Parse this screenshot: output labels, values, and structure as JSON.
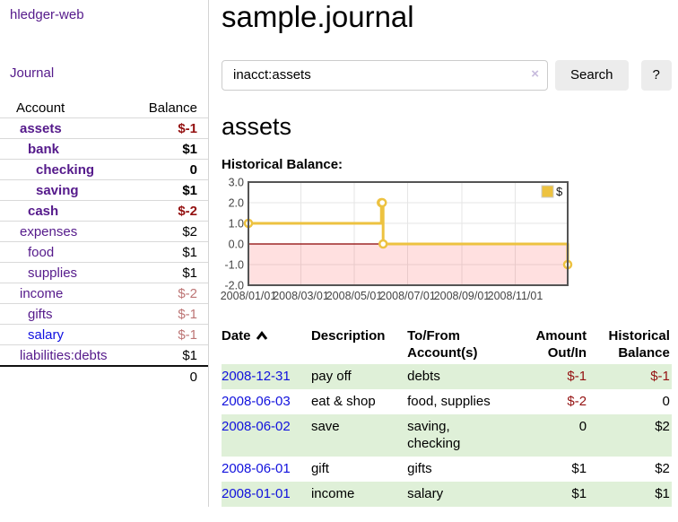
{
  "app": {
    "brand": "hledger-web",
    "nav_journal_label": "Journal"
  },
  "sidebar": {
    "columns": {
      "account": "Account",
      "balance": "Balance"
    },
    "accounts": [
      {
        "name": "assets",
        "depth": 1,
        "bold": true,
        "balance": "$-1",
        "neg": "strong"
      },
      {
        "name": "bank",
        "depth": 2,
        "bold": true,
        "balance": "$1",
        "neg": ""
      },
      {
        "name": "checking",
        "depth": 3,
        "bold": true,
        "balance": "0",
        "neg": ""
      },
      {
        "name": "saving",
        "depth": 3,
        "bold": true,
        "balance": "$1",
        "neg": ""
      },
      {
        "name": "cash",
        "depth": 2,
        "bold": true,
        "balance": "$-2",
        "neg": "strong"
      },
      {
        "name": "expenses",
        "depth": 1,
        "bold": false,
        "balance": "$2",
        "neg": ""
      },
      {
        "name": "food",
        "depth": 2,
        "bold": false,
        "balance": "$1",
        "neg": ""
      },
      {
        "name": "supplies",
        "depth": 2,
        "bold": false,
        "balance": "$1",
        "neg": ""
      },
      {
        "name": "income",
        "depth": 1,
        "bold": false,
        "balance": "$-2",
        "neg": "muted"
      },
      {
        "name": "gifts",
        "depth": 2,
        "bold": false,
        "balance": "$-1",
        "neg": "muted"
      },
      {
        "name": "salary",
        "depth": 2,
        "bold": false,
        "balance": "$-1",
        "neg": "muted",
        "blue": true
      },
      {
        "name": "liabilities:debts",
        "depth": 1,
        "bold": false,
        "balance": "$1",
        "neg": ""
      }
    ],
    "total": "0"
  },
  "header": {
    "title": "sample.journal"
  },
  "search": {
    "value": "inacct:assets",
    "clear_glyph": "×",
    "button_label": "Search",
    "help_label": "?"
  },
  "account_page": {
    "title": "assets",
    "chart_label": "Historical Balance:"
  },
  "chart_data": {
    "type": "line",
    "step": true,
    "title": "Historical Balance",
    "series": [
      {
        "name": "$",
        "color": "#edc240",
        "points": [
          [
            "2008-01-01",
            1
          ],
          [
            "2008-06-01",
            2
          ],
          [
            "2008-06-02",
            2
          ],
          [
            "2008-06-03",
            0
          ],
          [
            "2008-12-31",
            -1
          ]
        ]
      }
    ],
    "xlim": [
      "2008-01-01",
      "2008-12-31"
    ],
    "ylim": [
      -2,
      3
    ],
    "yticks": [
      {
        "value": 3,
        "label": "3.0"
      },
      {
        "value": 2,
        "label": "2.0"
      },
      {
        "value": 1,
        "label": "1.0"
      },
      {
        "value": 0,
        "label": "0.0"
      },
      {
        "value": -1,
        "label": "-1.0"
      },
      {
        "value": -2,
        "label": "-2.0"
      }
    ],
    "xticks": [
      {
        "date": "2008-01-01",
        "label": "2008/01/01"
      },
      {
        "date": "2008-03-01",
        "label": "2008/03/01"
      },
      {
        "date": "2008-05-01",
        "label": "2008/05/01"
      },
      {
        "date": "2008-07-01",
        "label": "2008/07/01"
      },
      {
        "date": "2008-09-01",
        "label": "2008/09/01"
      },
      {
        "date": "2008-11-01",
        "label": "2008/11/01"
      }
    ],
    "legend": {
      "label": "$",
      "position": "top-right",
      "swatch_color": "#edc240"
    },
    "grid": true,
    "grid_color": "#e6e6e6",
    "border_color": "#545454",
    "zero_line_color": "#8b0000",
    "negative_region_color": "rgba(255,0,0,0.12)",
    "tick_label_color": "#444444",
    "marker": "circle-open"
  },
  "register": {
    "columns": {
      "date": "Date",
      "description": "Description",
      "accounts": "To/From Account(s)",
      "amount": "Amount Out/In",
      "balance": "Historical Balance"
    },
    "sort": "ascending",
    "rows": [
      {
        "date": "2008-12-31",
        "description": "pay off",
        "accounts": "debts",
        "amount": "$-1",
        "amount_neg": true,
        "balance": "$-1",
        "balance_neg": true
      },
      {
        "date": "2008-06-03",
        "description": "eat & shop",
        "accounts": "food, supplies",
        "amount": "$-2",
        "amount_neg": true,
        "balance": "0",
        "balance_neg": false
      },
      {
        "date": "2008-06-02",
        "description": "save",
        "accounts": "saving, checking",
        "amount": "0",
        "amount_neg": false,
        "balance": "$2",
        "balance_neg": false
      },
      {
        "date": "2008-06-01",
        "description": "gift",
        "accounts": "gifts",
        "amount": "$1",
        "amount_neg": false,
        "balance": "$2",
        "balance_neg": false
      },
      {
        "date": "2008-01-01",
        "description": "income",
        "accounts": "salary",
        "amount": "$1",
        "amount_neg": false,
        "balance": "$1",
        "balance_neg": false
      }
    ]
  }
}
